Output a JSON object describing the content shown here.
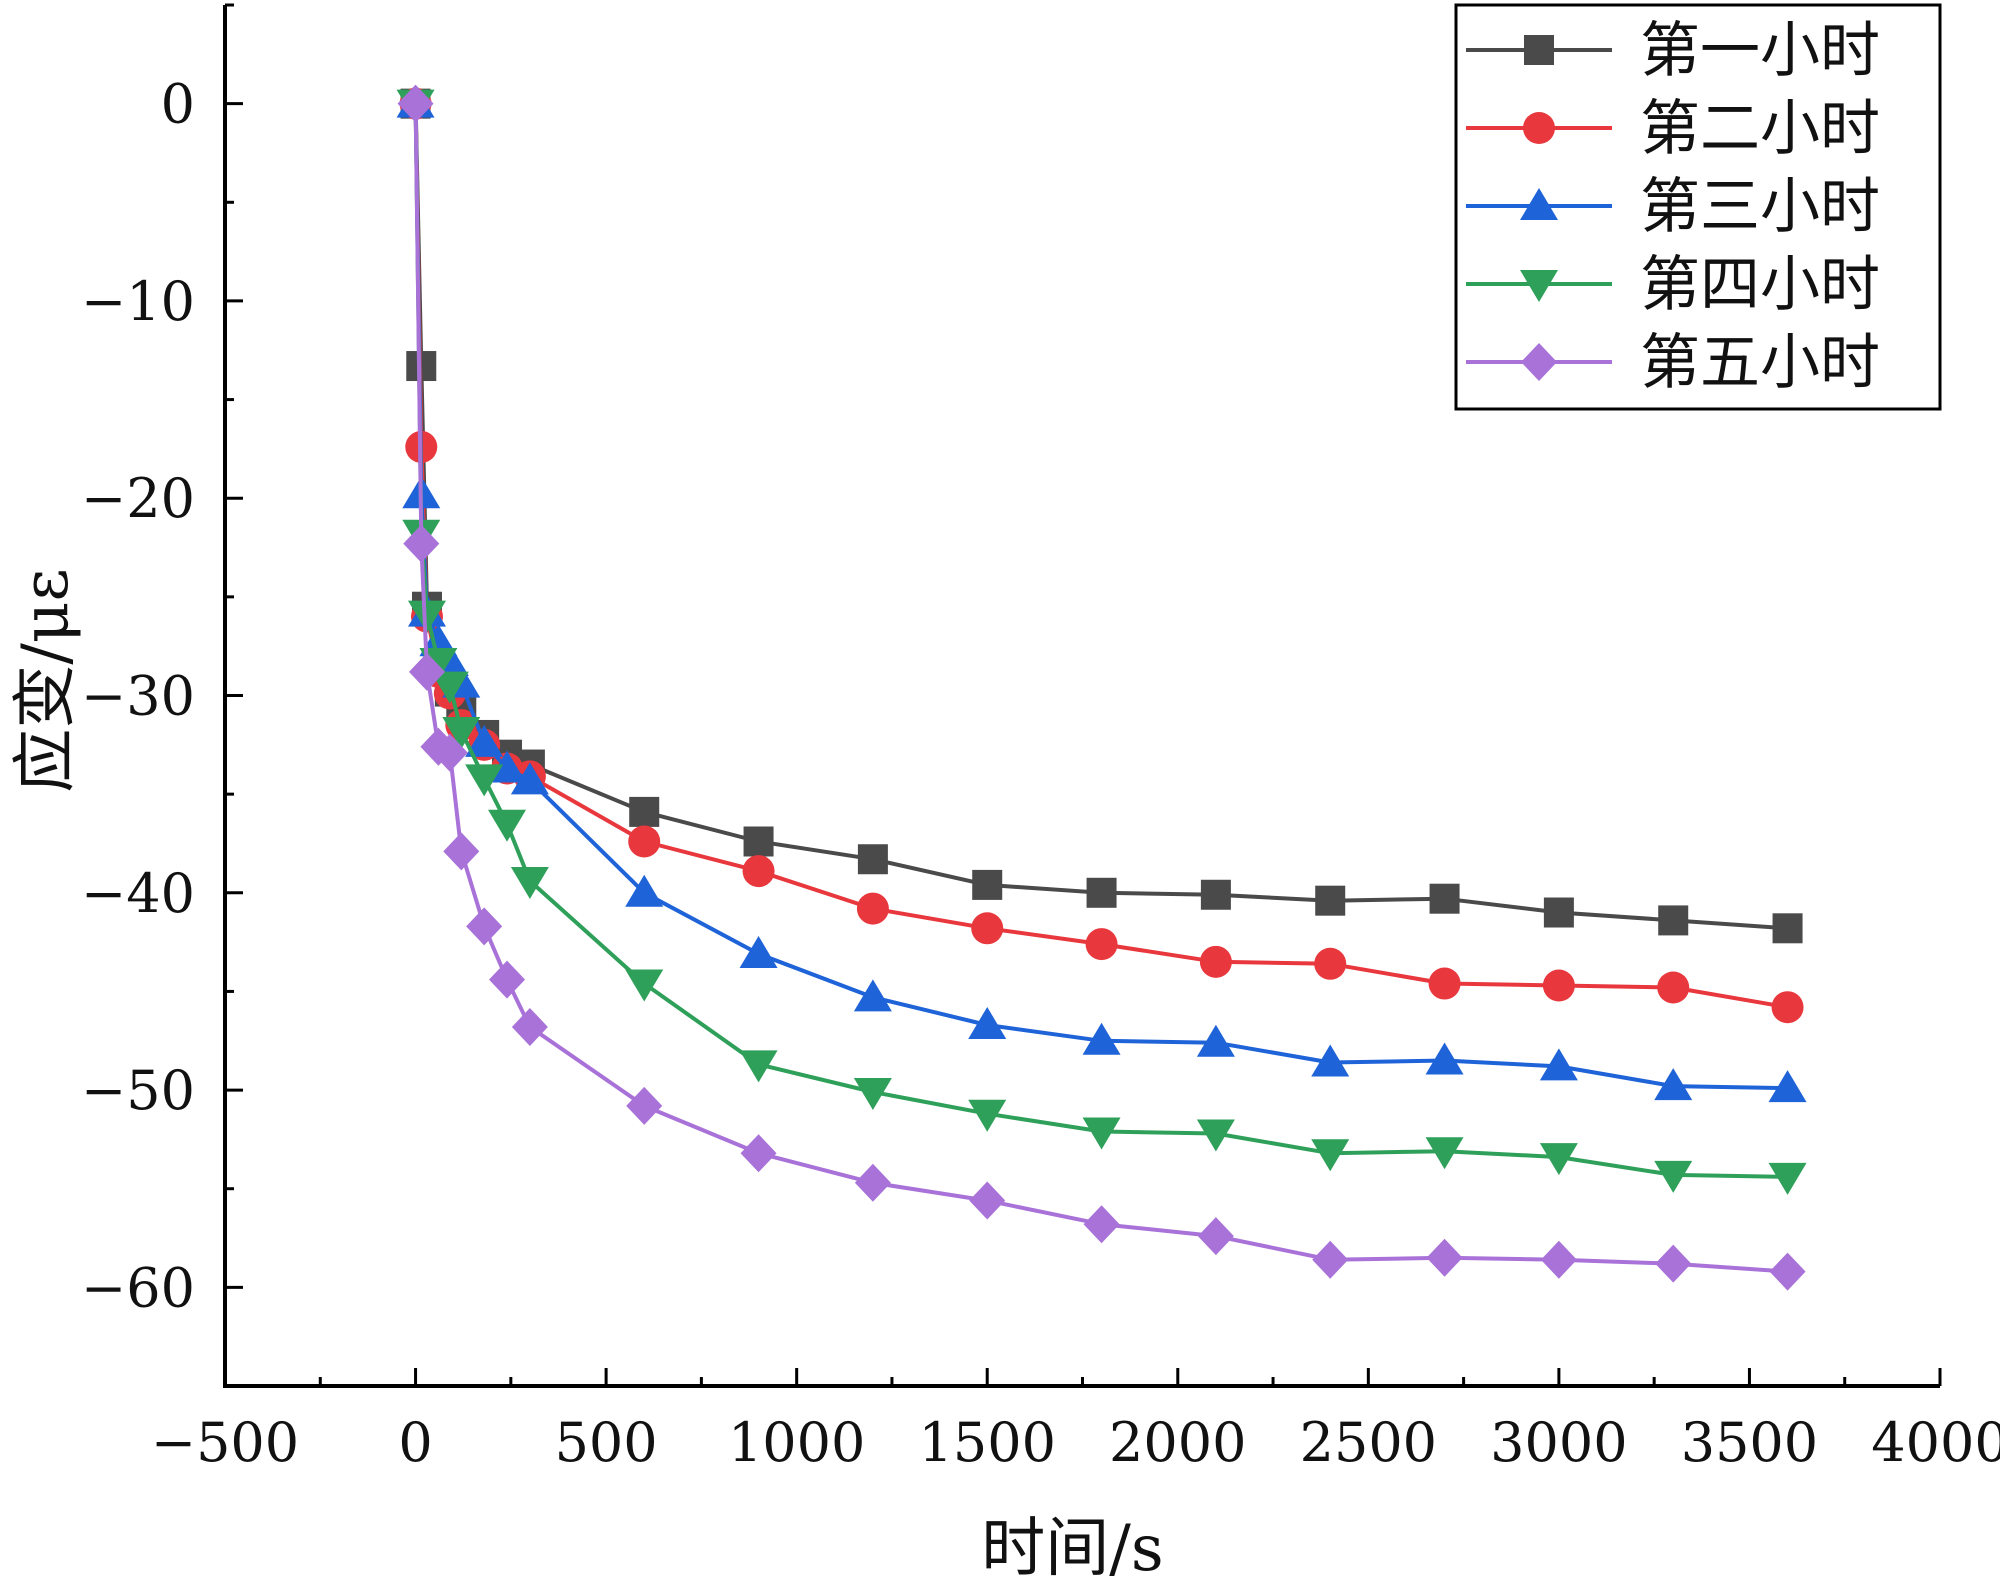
{
  "chart_data": {
    "type": "line",
    "title": "",
    "xlabel": "时间/s",
    "ylabel": "应变/με",
    "xlim": [
      -500,
      4000
    ],
    "ylim": [
      -65,
      5
    ],
    "xticks": [
      -500,
      0,
      500,
      1000,
      1500,
      2000,
      2500,
      3000,
      3500,
      4000
    ],
    "xtick_labels": [
      "−500",
      "0",
      "500",
      "1000",
      "1500",
      "2000",
      "2500",
      "3000",
      "3500",
      "4000"
    ],
    "yticks": [
      0,
      -10,
      -20,
      -30,
      -40,
      -50,
      -60
    ],
    "ytick_labels": [
      "0",
      "−10",
      "−20",
      "−30",
      "−40",
      "−50",
      "−60"
    ],
    "grid": false,
    "legend_position": "top-right",
    "x": [
      0,
      15,
      30,
      60,
      90,
      120,
      180,
      240,
      300,
      600,
      900,
      1200,
      1500,
      1800,
      2100,
      2400,
      2700,
      3000,
      3300,
      3600
    ],
    "series": [
      {
        "name": "第一小时",
        "color": "#4a4a4a",
        "marker": "square",
        "values": [
          0,
          -13.3,
          -25.5,
          -28.5,
          -29.8,
          -30.8,
          -32.0,
          -33.0,
          -33.5,
          -35.9,
          -37.4,
          -38.3,
          -39.6,
          -40.0,
          -40.1,
          -40.4,
          -40.3,
          -41.0,
          -41.4,
          -41.8
        ]
      },
      {
        "name": "第二小时",
        "color": "#e8383d",
        "marker": "circle",
        "values": [
          0,
          -17.4,
          -26.0,
          -28.8,
          -29.9,
          -31.5,
          -32.5,
          -33.7,
          -34.1,
          -37.4,
          -38.9,
          -40.8,
          -41.8,
          -42.6,
          -43.5,
          -43.6,
          -44.6,
          -44.7,
          -44.8,
          -45.8
        ]
      },
      {
        "name": "第三小时",
        "color": "#1f63d8",
        "marker": "triangle-up",
        "values": [
          0,
          -19.8,
          -25.8,
          -27.3,
          -28.3,
          -29.4,
          -32.4,
          -33.7,
          -34.3,
          -40.0,
          -43.1,
          -45.3,
          -46.7,
          -47.5,
          -47.6,
          -48.6,
          -48.5,
          -48.8,
          -49.8,
          -49.9
        ]
      },
      {
        "name": "第四小时",
        "color": "#2fa05a",
        "marker": "triangle-down",
        "values": [
          0,
          -21.8,
          -25.9,
          -28.3,
          -29.5,
          -31.8,
          -34.2,
          -36.5,
          -39.4,
          -44.6,
          -48.7,
          -50.1,
          -51.2,
          -52.1,
          -52.2,
          -53.2,
          -53.1,
          -53.4,
          -54.3,
          -54.4
        ]
      },
      {
        "name": "第五小时",
        "color": "#a872d8",
        "marker": "diamond",
        "values": [
          0,
          -22.3,
          -28.8,
          -32.6,
          -32.9,
          -37.9,
          -41.7,
          -44.4,
          -46.8,
          -50.8,
          -53.2,
          -54.7,
          -55.6,
          -56.8,
          -57.4,
          -58.6,
          -58.5,
          -58.6,
          -58.8,
          -59.2
        ]
      }
    ]
  }
}
